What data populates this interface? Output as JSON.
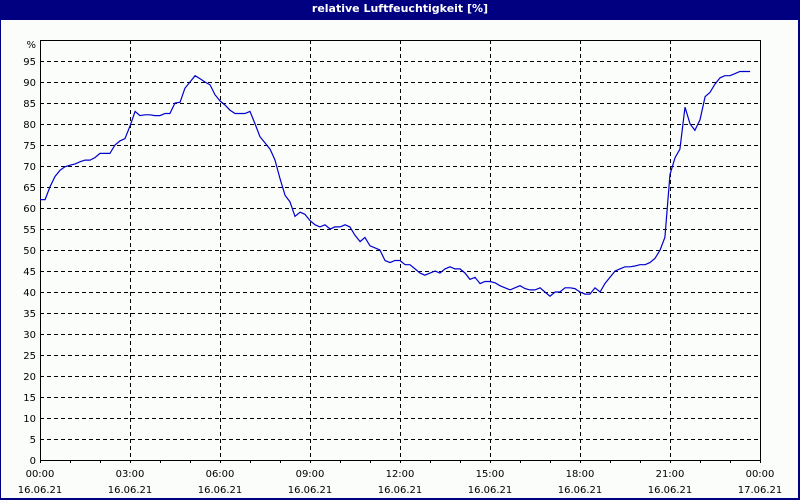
{
  "window": {
    "title": "relative Luftfeuchtigkeit [%]"
  },
  "colors": {
    "title_bar": "#000080",
    "background": "#fbfdfb",
    "series": "#0000cc",
    "grid": "#000000"
  },
  "chart_data": {
    "type": "line",
    "title": "relative Luftfeuchtigkeit [%]",
    "xlabel": "",
    "ylabel": "%",
    "ylim": [
      0,
      100
    ],
    "y_ticks": [
      "0",
      "5",
      "10",
      "15",
      "20",
      "25",
      "30",
      "35",
      "40",
      "45",
      "50",
      "55",
      "60",
      "65",
      "70",
      "75",
      "80",
      "85",
      "90",
      "95"
    ],
    "y_unit_label": "%",
    "x_ticks": [
      {
        "time": "00:00",
        "date": "16.06.21"
      },
      {
        "time": "03:00",
        "date": "16.06.21"
      },
      {
        "time": "06:00",
        "date": "16.06.21"
      },
      {
        "time": "09:00",
        "date": "16.06.21"
      },
      {
        "time": "12:00",
        "date": "16.06.21"
      },
      {
        "time": "15:00",
        "date": "16.06.21"
      },
      {
        "time": "18:00",
        "date": "16.06.21"
      },
      {
        "time": "21:00",
        "date": "16.06.21"
      },
      {
        "time": "00:00",
        "date": "17.06.21"
      }
    ],
    "grid": true,
    "legend": "none",
    "series": [
      {
        "name": "relative Luftfeuchtigkeit",
        "x_hours": [
          0,
          0.17,
          0.33,
          0.5,
          0.67,
          0.83,
          1.0,
          1.17,
          1.33,
          1.5,
          1.67,
          1.83,
          2.0,
          2.17,
          2.33,
          2.5,
          2.67,
          2.83,
          3.0,
          3.17,
          3.33,
          3.5,
          3.67,
          3.83,
          4.0,
          4.17,
          4.33,
          4.5,
          4.67,
          4.83,
          5.0,
          5.17,
          5.33,
          5.5,
          5.67,
          5.83,
          6.0,
          6.17,
          6.33,
          6.5,
          6.67,
          6.83,
          7.0,
          7.17,
          7.33,
          7.5,
          7.67,
          7.83,
          8.0,
          8.17,
          8.33,
          8.5,
          8.67,
          8.83,
          9.0,
          9.17,
          9.33,
          9.5,
          9.67,
          9.83,
          10.0,
          10.17,
          10.33,
          10.5,
          10.67,
          10.83,
          11.0,
          11.17,
          11.33,
          11.5,
          11.67,
          11.83,
          12.0,
          12.17,
          12.33,
          12.5,
          12.67,
          12.83,
          13.0,
          13.17,
          13.33,
          13.5,
          13.67,
          13.83,
          14.0,
          14.17,
          14.33,
          14.5,
          14.67,
          14.83,
          15.0,
          15.17,
          15.33,
          15.5,
          15.67,
          15.83,
          16.0,
          16.17,
          16.33,
          16.5,
          16.67,
          16.83,
          17.0,
          17.17,
          17.33,
          17.5,
          17.67,
          17.83,
          18.0,
          18.17,
          18.33,
          18.5,
          18.67,
          18.83,
          19.0,
          19.17,
          19.33,
          19.5,
          19.67,
          19.83,
          20.0,
          20.17,
          20.33,
          20.5,
          20.67,
          20.83,
          21.0,
          21.17,
          21.33,
          21.5,
          21.67,
          21.83,
          22.0,
          22.17,
          22.33,
          22.5,
          22.67,
          22.83,
          23.0,
          23.17,
          23.33,
          23.5,
          23.67,
          23.83
        ],
        "values": [
          62,
          62,
          65,
          67.5,
          69,
          69.8,
          70.2,
          70.5,
          71,
          71.4,
          71.4,
          72,
          73,
          73,
          73,
          75,
          76,
          76.5,
          79.5,
          83,
          82,
          82.2,
          82.2,
          82,
          82,
          82.5,
          82.5,
          85,
          85.2,
          88.5,
          90,
          91.5,
          90.8,
          90,
          89.3,
          87,
          85.5,
          84.5,
          83.3,
          82.5,
          82.5,
          82.5,
          83,
          80,
          77,
          75.5,
          74,
          71.5,
          67,
          63,
          61.5,
          58,
          59,
          58.5,
          57,
          56,
          55.5,
          56,
          55,
          55.5,
          55.5,
          56,
          55.5,
          53.5,
          52,
          53,
          51,
          50.5,
          50,
          47.5,
          47,
          47.5,
          47.5,
          46.5,
          46.5,
          45.5,
          44.5,
          44,
          44.5,
          45,
          44.5,
          45.5,
          46,
          45.5,
          45.5,
          44.5,
          43,
          43.5,
          42,
          42.5,
          42.5,
          42.2,
          41.5,
          41,
          40.5,
          41,
          41.5,
          40.8,
          40.5,
          40.5,
          41,
          40,
          39,
          40,
          40,
          41,
          41,
          40.8,
          40,
          39.5,
          39.5,
          41,
          40,
          42,
          43.5,
          45,
          45.5,
          46,
          46,
          46.2,
          46.5,
          46.5,
          47,
          48,
          50,
          53,
          68,
          72,
          74,
          84,
          80,
          78.5,
          81,
          86.5,
          87.5,
          89.5,
          91,
          91.5,
          91.5,
          92,
          92.5,
          92.5,
          92.5
        ]
      }
    ]
  }
}
